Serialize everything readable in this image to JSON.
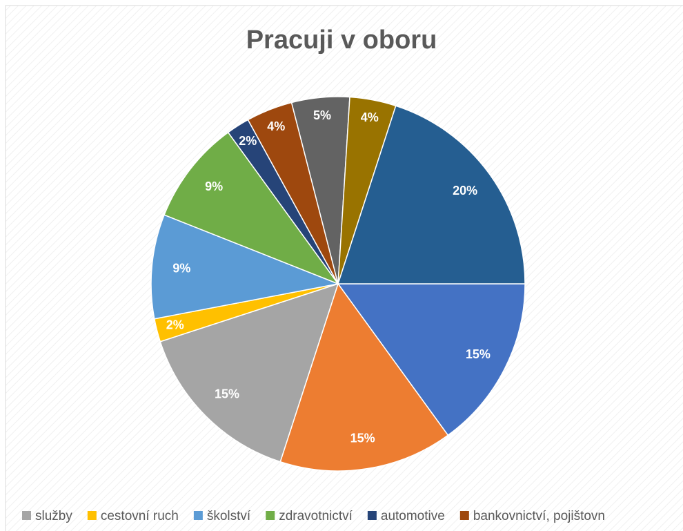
{
  "chart_data": {
    "type": "pie",
    "title": "Pracuji v oboru",
    "categories": [
      null,
      null,
      "služby",
      "cestovní ruch",
      "školství",
      "zdravotnictví",
      "automotive",
      "bankovnictví, pojištovn",
      null,
      null,
      null
    ],
    "values": [
      15,
      15,
      15,
      2,
      9,
      9,
      2,
      4,
      5,
      4,
      20
    ],
    "value_labels": [
      "15%",
      "15%",
      "15%",
      "2%",
      "9%",
      "9%",
      "2%",
      "4%",
      "5%",
      "4%",
      "20%"
    ],
    "colors": [
      "#4472c4",
      "#ed7d31",
      "#a5a5a5",
      "#ffc000",
      "#5b9bd5",
      "#70ad47",
      "#264478",
      "#9e480e",
      "#636363",
      "#997300",
      "#255e91"
    ]
  }
}
